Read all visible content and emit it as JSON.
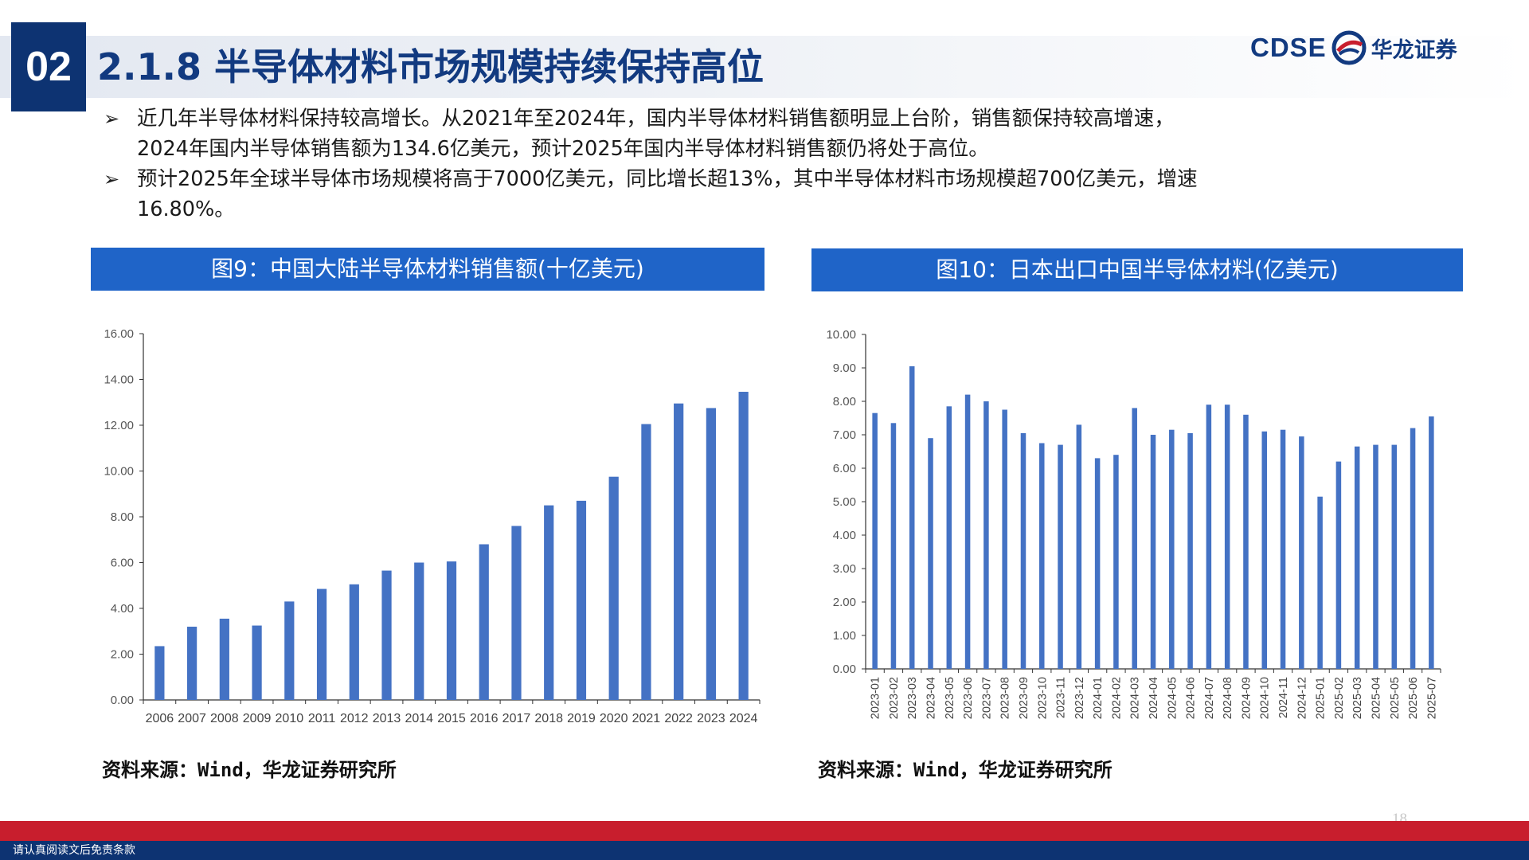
{
  "header": {
    "section_number": "02",
    "title": "2.1.8 半导体材料市场规模持续保持高位",
    "logo_en": "CDSE",
    "logo_cn": "华龙证券"
  },
  "bullets": [
    {
      "line1": "近几年半导体材料保持较高增长。从2021年至2024年，国内半导体材料销售额明显上台阶，销售额保持较高增速，",
      "line2": "2024年国内半导体销售额为134.6亿美元，预计2025年国内半导体材料销售额仍将处于高位。"
    },
    {
      "line1": "预计2025年全球半导体市场规模将高于7000亿美元，同比增长超13%，其中半导体材料市场规模超700亿美元，增速",
      "line2": "16.80%。"
    }
  ],
  "charts": {
    "left_title": "图9：中国大陆半导体材料销售额(十亿美元)",
    "right_title": "图10：日本出口中国半导体材料(亿美元)",
    "left_source": "资料来源：Wind，华龙证券研究所",
    "right_source": "资料来源：Wind，华龙证券研究所"
  },
  "chart_data": [
    {
      "type": "bar",
      "title": "图9：中国大陆半导体材料销售额(十亿美元)",
      "categories": [
        "2006",
        "2007",
        "2008",
        "2009",
        "2010",
        "2011",
        "2012",
        "2013",
        "2014",
        "2015",
        "2016",
        "2017",
        "2018",
        "2019",
        "2020",
        "2021",
        "2022",
        "2023",
        "2024"
      ],
      "values": [
        2.35,
        3.2,
        3.55,
        3.25,
        4.3,
        4.85,
        5.05,
        5.65,
        6.0,
        6.05,
        6.8,
        7.6,
        8.5,
        8.7,
        9.75,
        12.05,
        12.95,
        12.75,
        13.46
      ],
      "ylim": [
        0,
        16
      ],
      "yticks": [
        "0.00",
        "2.00",
        "4.00",
        "6.00",
        "8.00",
        "10.00",
        "12.00",
        "14.00",
        "16.00"
      ],
      "color": "#4472c4",
      "grid": false,
      "legend": "none"
    },
    {
      "type": "bar",
      "title": "图10：日本出口中国半导体材料(亿美元)",
      "categories": [
        "2023-01",
        "2023-02",
        "2023-03",
        "2023-04",
        "2023-05",
        "2023-06",
        "2023-07",
        "2023-08",
        "2023-09",
        "2023-10",
        "2023-11",
        "2023-12",
        "2024-01",
        "2024-02",
        "2024-03",
        "2024-04",
        "2024-05",
        "2024-06",
        "2024-07",
        "2024-08",
        "2024-09",
        "2024-10",
        "2024-11",
        "2024-12",
        "2025-01",
        "2025-02",
        "2025-03",
        "2025-04",
        "2025-05",
        "2025-06",
        "2025-07"
      ],
      "values": [
        7.65,
        7.35,
        9.05,
        6.9,
        7.85,
        8.2,
        8.0,
        7.75,
        7.05,
        6.75,
        6.7,
        7.3,
        6.3,
        6.4,
        7.8,
        7.0,
        7.15,
        7.05,
        7.9,
        7.9,
        7.6,
        7.1,
        7.15,
        6.95,
        5.15,
        6.2,
        6.65,
        6.7,
        6.7,
        7.2,
        7.55
      ],
      "ylim": [
        0,
        10
      ],
      "yticks": [
        "0.00",
        "1.00",
        "2.00",
        "3.00",
        "4.00",
        "5.00",
        "6.00",
        "7.00",
        "8.00",
        "9.00",
        "10.00"
      ],
      "color": "#4472c4",
      "grid": false,
      "legend": "none"
    }
  ],
  "footer": {
    "page_number": "18",
    "disclaimer": "请认真阅读文后免责条款"
  }
}
